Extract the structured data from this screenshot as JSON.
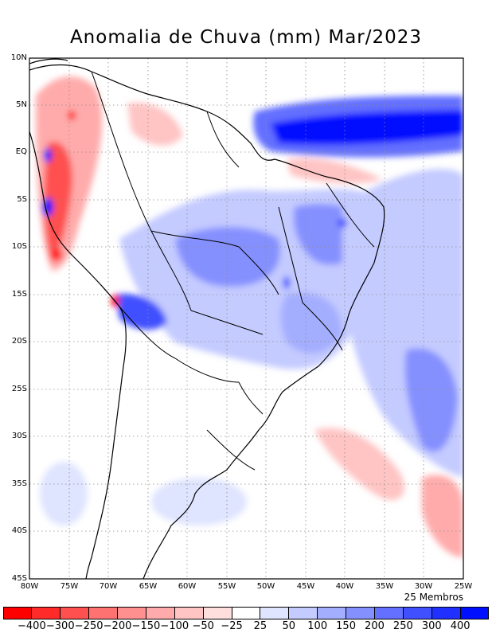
{
  "title": "Anomalia de Chuva (mm) Mar/2023",
  "members": "25 Membros",
  "lat_labels": [
    "10N",
    "5N",
    "EQ",
    "5S",
    "10S",
    "15S",
    "20S",
    "25S",
    "30S",
    "35S",
    "40S",
    "45S"
  ],
  "lon_labels": [
    "80W",
    "75W",
    "70W",
    "65W",
    "60W",
    "55W",
    "50W",
    "45W",
    "40W",
    "35W",
    "30W",
    "25W"
  ],
  "legend": {
    "ticks": [
      "−400",
      "−300",
      "−250",
      "−200",
      "−150",
      "−100",
      "−50",
      "−25",
      "25",
      "50",
      "100",
      "150",
      "200",
      "250",
      "300",
      "400"
    ],
    "colors": [
      "#ff0000",
      "#ff2b2b",
      "#ff5050",
      "#ff7272",
      "#ff9090",
      "#ffabab",
      "#ffc4c4",
      "#ffdede",
      "#ffffff",
      "#dfe4ff",
      "#c4cbff",
      "#a4aeff",
      "#8590ff",
      "#6470ff",
      "#4050ff",
      "#2030ff",
      "#0010ff"
    ]
  },
  "colors": {
    "map_frame": "#000000",
    "grid": "#8c8c8c"
  }
}
